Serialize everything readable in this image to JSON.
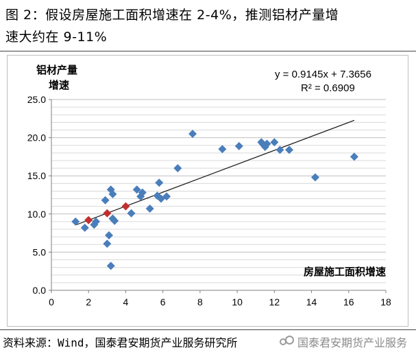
{
  "figure": {
    "title_line1": "图 2：假设房屋施工面积增速在 2-4%，推测铝材产量增",
    "title_line2": "速大约在 9-11%"
  },
  "source": {
    "text": "资料来源：Wind，国泰君安期货产业服务研究所",
    "watermark": "国泰君安期货产业服务"
  },
  "chart_data": {
    "type": "scatter",
    "xlabel": "房屋施工面积增速",
    "ylabel_line1": "铝材产量",
    "ylabel_line2": "增速",
    "xlim": [
      0,
      18
    ],
    "ylim": [
      0,
      25
    ],
    "x_ticks": [
      "0",
      "2",
      "4",
      "6",
      "8",
      "10",
      "12",
      "14",
      "16",
      "18"
    ],
    "y_ticks": [
      "0.0",
      "5.0",
      "10.0",
      "15.0",
      "20.0",
      "25.0"
    ],
    "grid": "horizontal",
    "equation": "y = 0.9145x + 7.3656",
    "r_squared": "R² = 0.6909",
    "trendline": {
      "slope": 0.9145,
      "intercept": 7.3656,
      "x_range": [
        1.3,
        16.3
      ]
    },
    "series": [
      {
        "color": "#4a7ebb",
        "marker": "diamond",
        "points": [
          [
            1.3,
            9.0
          ],
          [
            1.8,
            8.2
          ],
          [
            2.3,
            8.6
          ],
          [
            2.4,
            9.0
          ],
          [
            2.9,
            11.8
          ],
          [
            3.0,
            6.1
          ],
          [
            3.1,
            7.2
          ],
          [
            3.2,
            13.2
          ],
          [
            3.3,
            12.6
          ],
          [
            3.2,
            3.2
          ],
          [
            3.3,
            9.4
          ],
          [
            3.4,
            9.1
          ],
          [
            4.3,
            10.1
          ],
          [
            4.6,
            13.2
          ],
          [
            4.8,
            12.3
          ],
          [
            4.9,
            12.8
          ],
          [
            5.3,
            10.7
          ],
          [
            5.7,
            12.4
          ],
          [
            5.8,
            14.1
          ],
          [
            5.9,
            12.0
          ],
          [
            6.2,
            12.3
          ],
          [
            6.8,
            16.0
          ],
          [
            7.6,
            20.5
          ],
          [
            9.2,
            18.5
          ],
          [
            10.1,
            18.9
          ],
          [
            11.3,
            19.4
          ],
          [
            11.4,
            19.1
          ],
          [
            11.5,
            18.8
          ],
          [
            11.6,
            19.2
          ],
          [
            12.0,
            19.4
          ],
          [
            12.3,
            18.4
          ],
          [
            12.8,
            18.4
          ],
          [
            14.2,
            14.8
          ],
          [
            16.3,
            17.5
          ]
        ]
      },
      {
        "color": "#c0302f",
        "marker": "diamond",
        "points": [
          [
            2.0,
            9.2
          ],
          [
            3.0,
            10.1
          ],
          [
            4.0,
            11.0
          ]
        ]
      }
    ]
  }
}
